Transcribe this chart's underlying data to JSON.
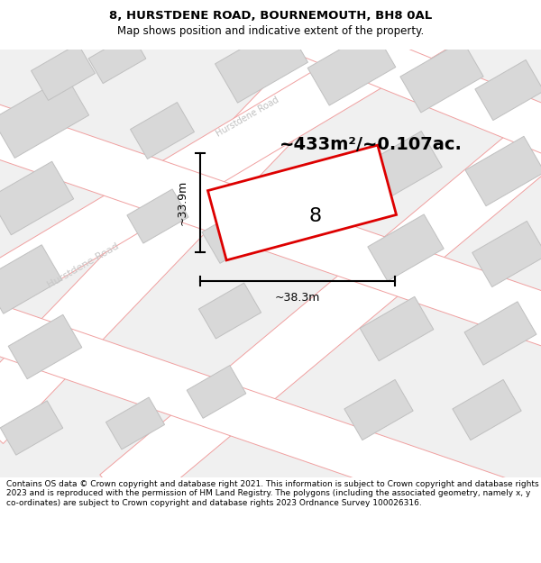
{
  "title": "8, HURSTDENE ROAD, BOURNEMOUTH, BH8 0AL",
  "subtitle": "Map shows position and indicative extent of the property.",
  "area_text": "~433m²/~0.107ac.",
  "property_number": "8",
  "width_label": "~38.3m",
  "height_label": "~33.9m",
  "road_label_left": "Hurstdene Road",
  "road_label_diag": "Hurstdene Road",
  "background_color": "#ffffff",
  "map_bg": "#ffffff",
  "block_color": "#d8d8d8",
  "block_edge": "#c0c0c0",
  "road_fill": "#f5f5f5",
  "road_edge": "#f0a0a0",
  "property_edge": "#dd0000",
  "footer_text": "Contains OS data © Crown copyright and database right 2021. This information is subject to Crown copyright and database rights 2023 and is reproduced with the permission of HM Land Registry. The polygons (including the associated geometry, namely x, y co-ordinates) are subject to Crown copyright and database rights 2023 Ordnance Survey 100026316.",
  "title_fontsize": 9.5,
  "subtitle_fontsize": 8.5,
  "area_fontsize": 16,
  "footer_fontsize": 6.5
}
